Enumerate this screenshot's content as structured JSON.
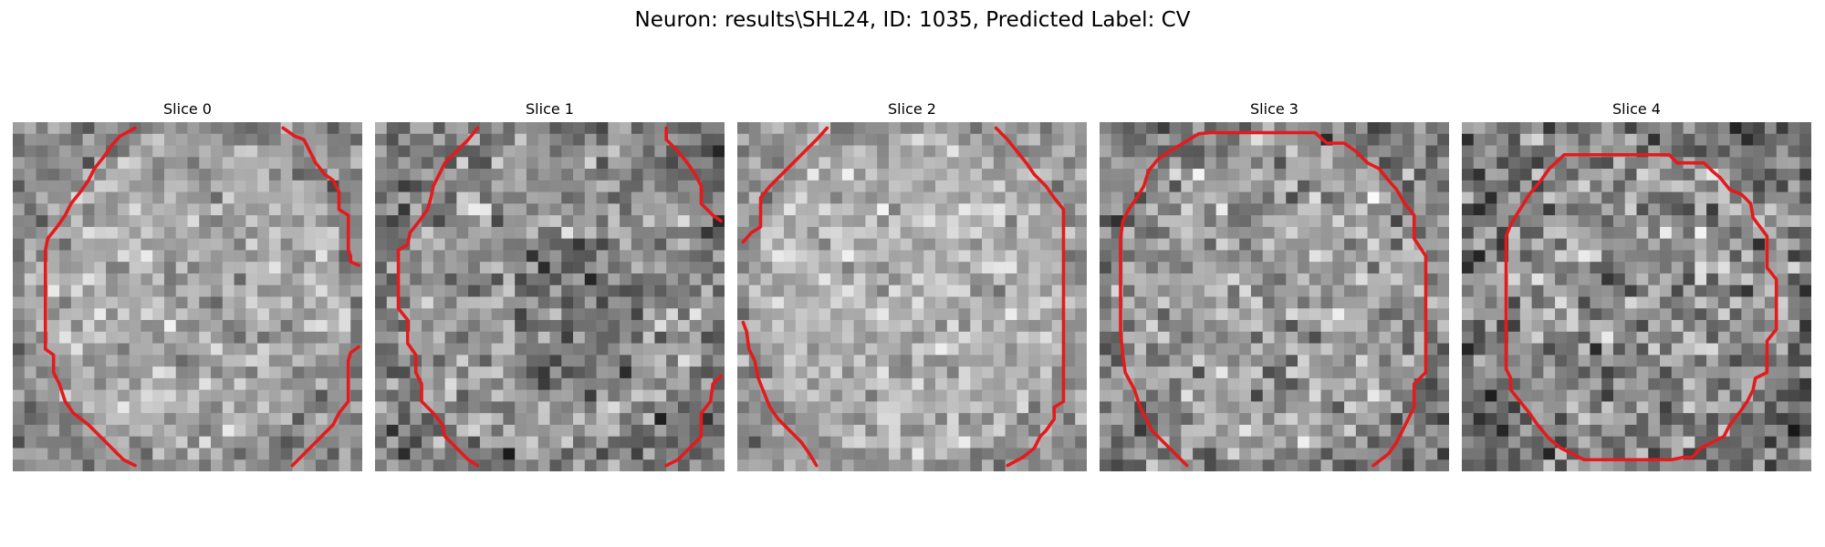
{
  "figure": {
    "suptitle": "Neuron: results\\SHL24, ID: 1035, Predicted Label: CV"
  },
  "colors": {
    "contour": "#e41a1c",
    "colormap": "grayscale"
  },
  "slices": [
    {
      "title": "Slice 0",
      "mean_intensity": 0.66,
      "contrast": 0.13
    },
    {
      "title": "Slice 1",
      "mean_intensity": 0.58,
      "contrast": 0.16
    },
    {
      "title": "Slice 2",
      "mean_intensity": 0.7,
      "contrast": 0.12
    },
    {
      "title": "Slice 3",
      "mean_intensity": 0.62,
      "contrast": 0.16
    },
    {
      "title": "Slice 4",
      "mean_intensity": 0.57,
      "contrast": 0.19
    }
  ]
}
